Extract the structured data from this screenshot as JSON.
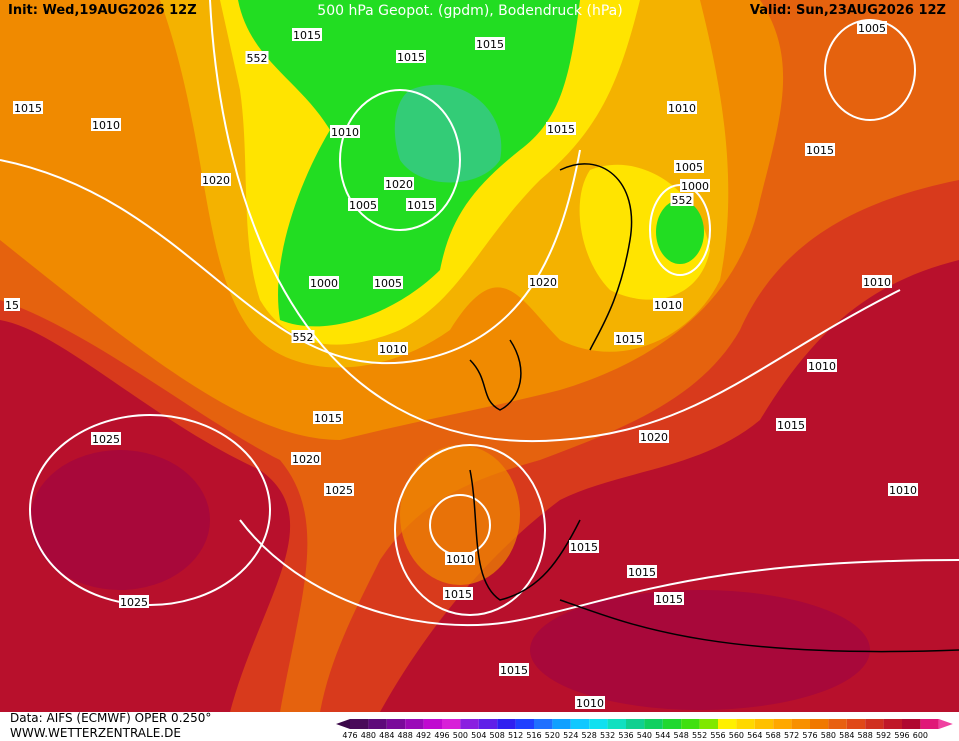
{
  "header": {
    "init": "Init: Wed,19AUG2026 12Z",
    "title": "500 hPa Geopot. (gpdm), Bodendruck (hPa)",
    "valid": "Valid: Sun,23AUG2026 12Z"
  },
  "footer": {
    "data": "Data: AIFS (ECMWF) OPER 0.250°",
    "website": "WWW.WETTERZENTRALE.DE"
  },
  "colorbar": {
    "labels": [
      476,
      480,
      484,
      488,
      492,
      496,
      500,
      504,
      508,
      512,
      516,
      520,
      524,
      528,
      532,
      536,
      540,
      544,
      548,
      552,
      556,
      560,
      564,
      568,
      572,
      576,
      580,
      584,
      588,
      592,
      596,
      600
    ]
  },
  "map": {
    "contour_labels": [
      "1015",
      "552",
      "1015",
      "1015",
      "1005",
      "1015",
      "1010",
      "1010",
      "1010",
      "1015",
      "1015",
      "1005",
      "1000",
      "1020",
      "1020",
      "552",
      "1005",
      "1015",
      "1000",
      "1005",
      "1020",
      "1010",
      "1010",
      "15",
      "552",
      "1015",
      "1010",
      "1010",
      "1015",
      "1015",
      "1025",
      "1020",
      "1020",
      "1025",
      "1010",
      "1015",
      "1010",
      "1015",
      "1015",
      "1015",
      "1025",
      "1015",
      "1010"
    ]
  }
}
